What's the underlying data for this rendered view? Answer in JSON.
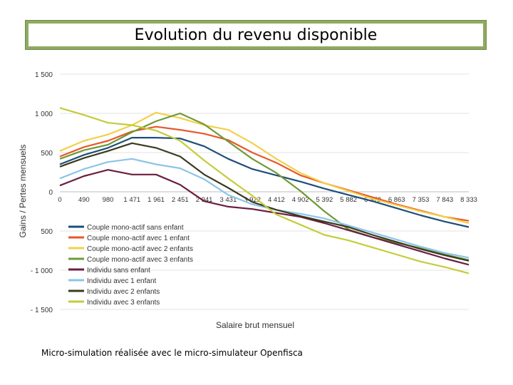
{
  "header": {
    "title": "Evolution du revenu disponible"
  },
  "footnote": "Micro-simulation réalisée avec le micro-simulateur Openfisca",
  "chart_data": {
    "type": "line",
    "title": "Evolution du revenu disponible",
    "xlabel": "Salaire brut mensuel",
    "ylabel": "Gains / Pertes mensuels",
    "ylim": [
      -1500,
      1500
    ],
    "y_ticks": [
      "1 500",
      "1 000",
      "500",
      "0",
      "500",
      "- 1 000",
      "- 1 500"
    ],
    "categories": [
      "0",
      "490",
      "980",
      "1 471",
      "1 961",
      "2 451",
      "2 941",
      "3 431",
      "3 922",
      "4 412",
      "4 902",
      "5 392",
      "5 882",
      "6 373",
      "6 863",
      "7 353",
      "7 843",
      "8 333"
    ],
    "series": [
      {
        "name": "Couple mono-actif sans enfant",
        "color": "#1f4e79",
        "values": [
          350,
          470,
          560,
          690,
          690,
          680,
          580,
          420,
          290,
          210,
          130,
          40,
          -40,
          -120,
          -210,
          -300,
          -380,
          -450
        ]
      },
      {
        "name": "Couple mono-actif avec 1 enfant",
        "color": "#e8572c",
        "values": [
          450,
          570,
          650,
          770,
          830,
          790,
          740,
          660,
          500,
          370,
          210,
          110,
          20,
          -70,
          -160,
          -240,
          -320,
          -370
        ]
      },
      {
        "name": "Couple mono-actif avec 2 enfants",
        "color": "#f2d04a",
        "values": [
          520,
          650,
          730,
          850,
          1010,
          940,
          850,
          790,
          620,
          420,
          240,
          110,
          10,
          -90,
          -170,
          -250,
          -320,
          -400
        ]
      },
      {
        "name": "Couple mono-actif avec 3 enfants",
        "color": "#6f9a36",
        "values": [
          420,
          530,
          600,
          760,
          900,
          1000,
          860,
          640,
          420,
          240,
          10,
          -250,
          -480,
          -580,
          -650,
          -720,
          -800,
          -870
        ]
      },
      {
        "name": "Individu sans enfant",
        "color": "#6b1e3f",
        "values": [
          80,
          200,
          280,
          220,
          220,
          90,
          -120,
          -190,
          -220,
          -270,
          -320,
          -400,
          -490,
          -580,
          -670,
          -760,
          -850,
          -930
        ]
      },
      {
        "name": "Individu avec 1 enfant",
        "color": "#8cc4e8",
        "values": [
          170,
          290,
          380,
          420,
          350,
          300,
          160,
          -40,
          -160,
          -230,
          -280,
          -340,
          -430,
          -520,
          -610,
          -700,
          -780,
          -840
        ]
      },
      {
        "name": "Individu avec 2 enfants",
        "color": "#3b3b1f",
        "values": [
          320,
          430,
          520,
          620,
          560,
          450,
          220,
          50,
          -130,
          -230,
          -310,
          -380,
          -450,
          -550,
          -640,
          -730,
          -810,
          -880
        ]
      },
      {
        "name": "Individu avec 3 enfants",
        "color": "#c5cc3a",
        "values": [
          1070,
          980,
          880,
          850,
          780,
          650,
          400,
          170,
          -50,
          -290,
          -420,
          -550,
          -620,
          -710,
          -800,
          -890,
          -960,
          -1040
        ]
      }
    ]
  }
}
